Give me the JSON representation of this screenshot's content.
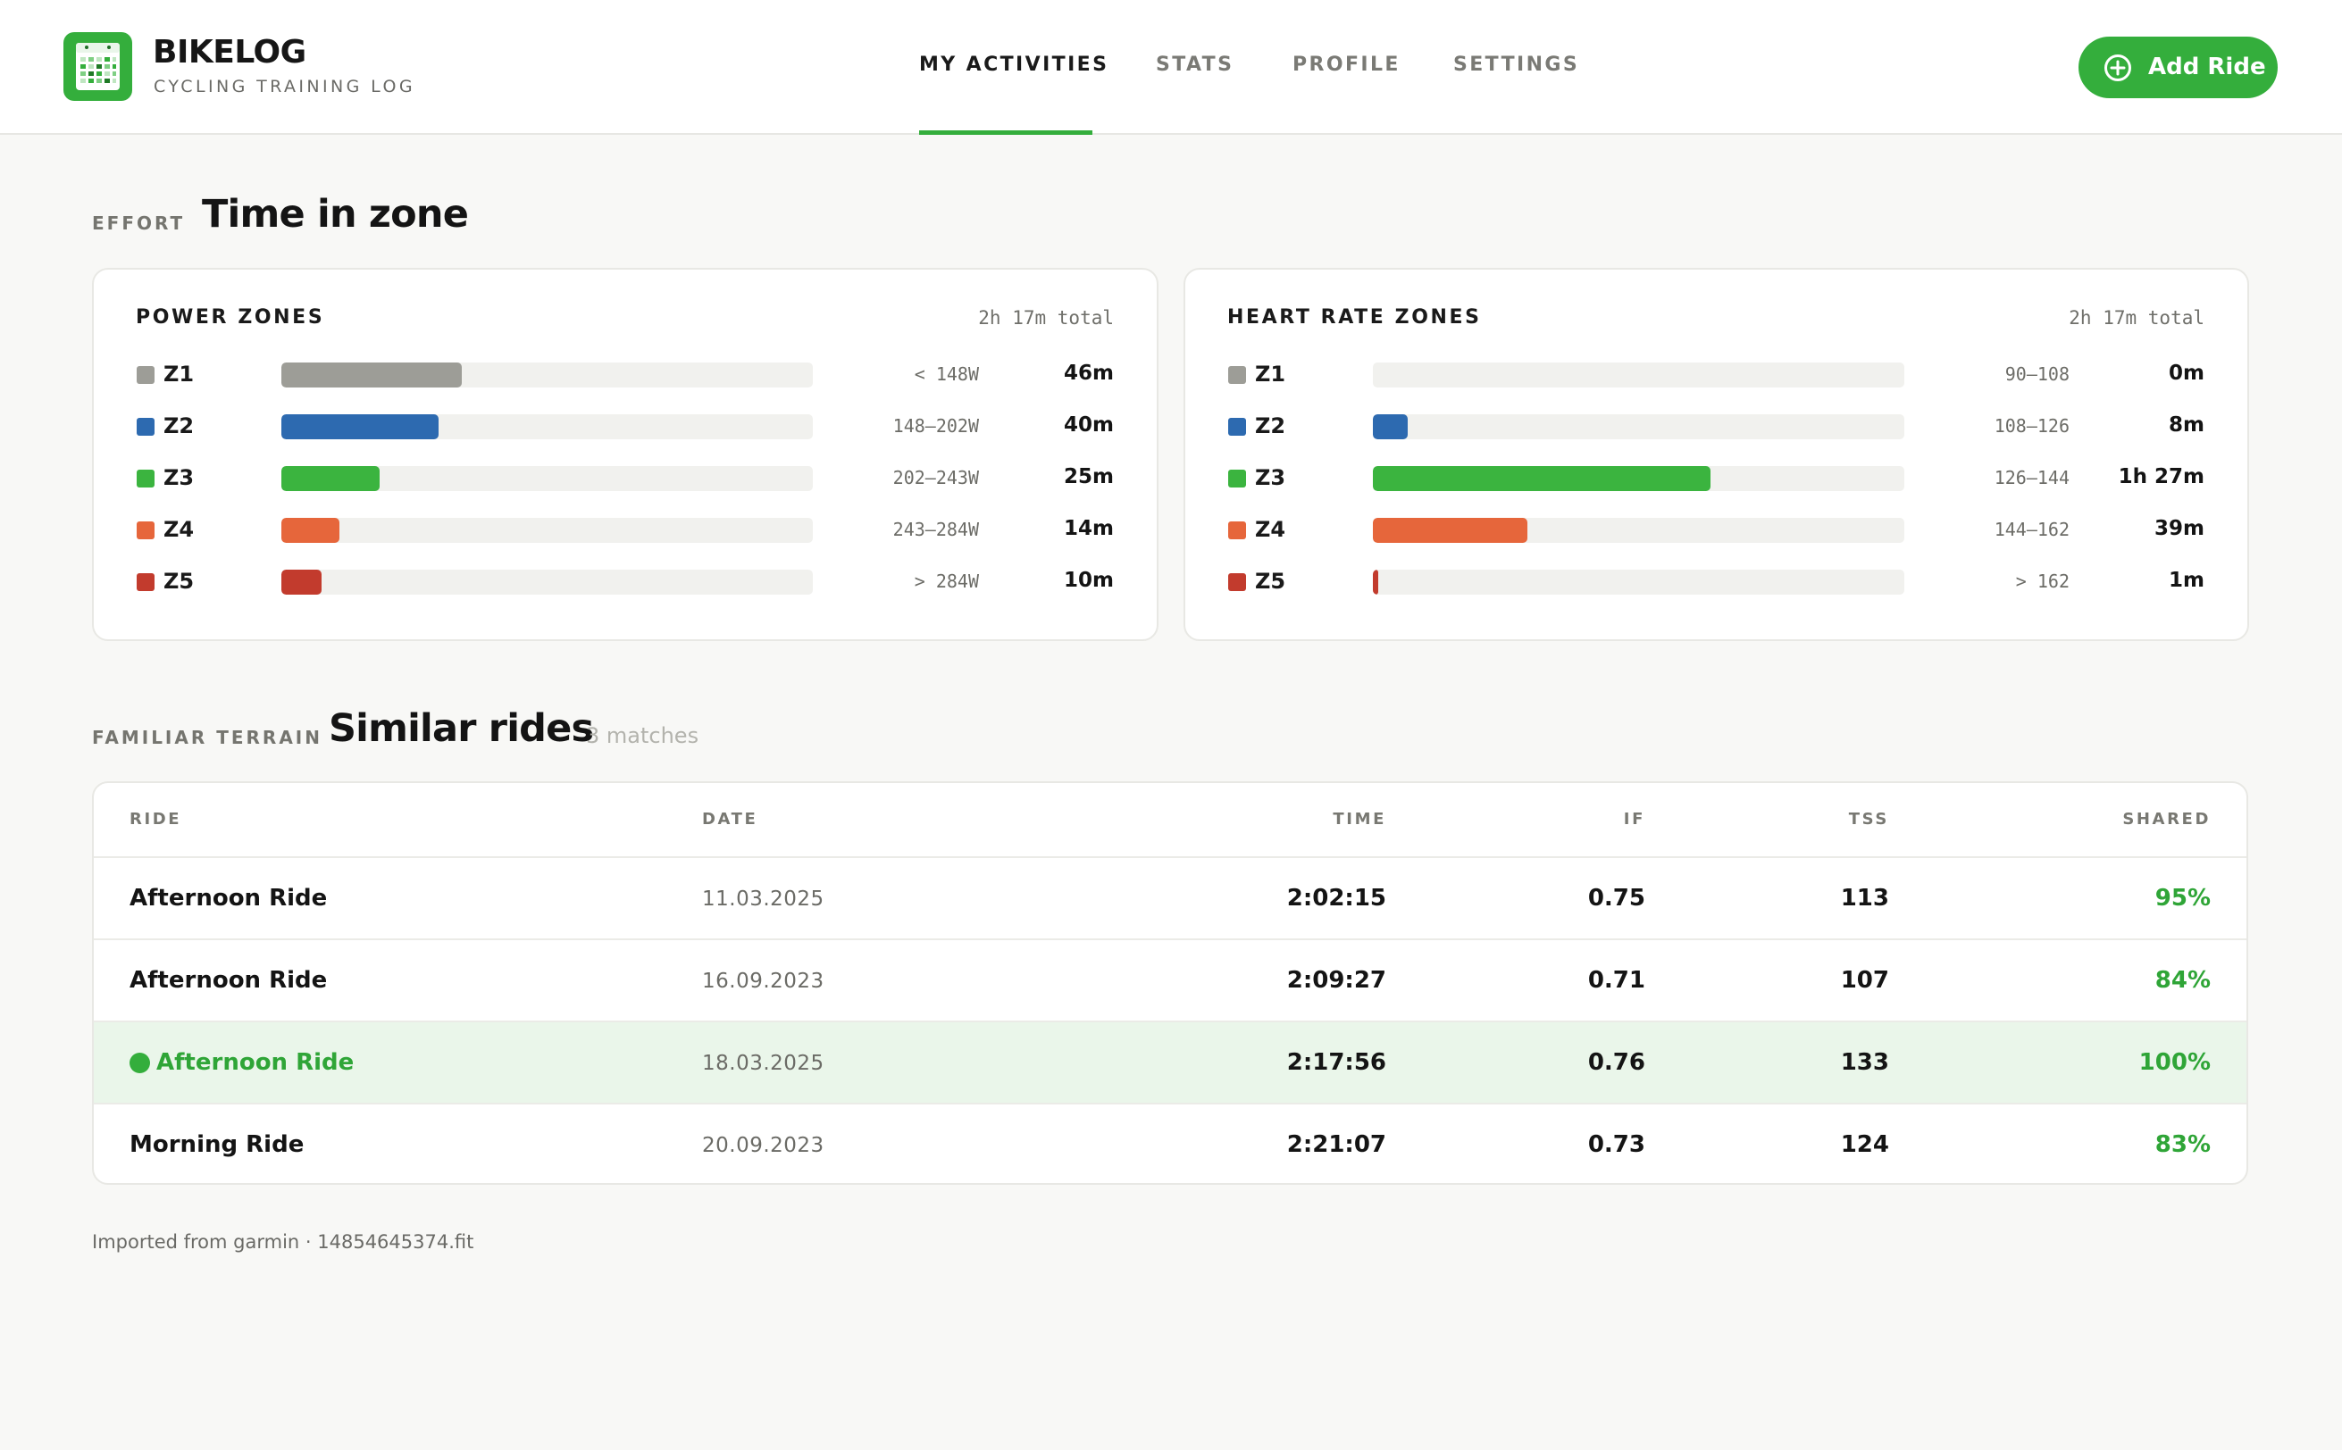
{
  "app": {
    "name": "BIKELOG",
    "subtitle": "CYCLING TRAINING LOG",
    "logo_icon": "calendar-grid-icon"
  },
  "nav": {
    "items": [
      {
        "label": "MY ACTIVITIES",
        "active": true
      },
      {
        "label": "STATS",
        "active": false
      },
      {
        "label": "PROFILE",
        "active": false
      },
      {
        "label": "SETTINGS",
        "active": false
      }
    ]
  },
  "actions": {
    "add_ride_label": "Add Ride",
    "add_ride_icon": "plus-circle-icon",
    "accent_color": "#34ae3c"
  },
  "effort_section": {
    "kicker": "EFFORT",
    "title": "Time in zone"
  },
  "power_zones": {
    "title": "POWER ZONES",
    "total": "2h 17m total",
    "zones": [
      {
        "name": "Z1",
        "range": "< 148W",
        "time": "46m",
        "fraction": 0.34,
        "color": "#9d9d97"
      },
      {
        "name": "Z2",
        "range": "148–202W",
        "time": "40m",
        "fraction": 0.295,
        "color": "#2d6ab0"
      },
      {
        "name": "Z3",
        "range": "202–243W",
        "time": "25m",
        "fraction": 0.185,
        "color": "#3bb43f"
      },
      {
        "name": "Z4",
        "range": "243–284W",
        "time": "14m",
        "fraction": 0.11,
        "color": "#e6663b"
      },
      {
        "name": "Z5",
        "range": "> 284W",
        "time": "10m",
        "fraction": 0.075,
        "color": "#c23b2d"
      }
    ]
  },
  "hr_zones": {
    "title": "HEART RATE ZONES",
    "total": "2h 17m total",
    "zones": [
      {
        "name": "Z1",
        "range": "90–108",
        "time": "0m",
        "fraction": 0,
        "color": "#9d9d97"
      },
      {
        "name": "Z2",
        "range": "108–126",
        "time": "8m",
        "fraction": 0.065,
        "color": "#2d6ab0"
      },
      {
        "name": "Z3",
        "range": "126–144",
        "time": "1h 27m",
        "fraction": 0.635,
        "color": "#3bb43f"
      },
      {
        "name": "Z4",
        "range": "144–162",
        "time": "39m",
        "fraction": 0.29,
        "color": "#e6663b"
      },
      {
        "name": "Z5",
        "range": "> 162",
        "time": "1m",
        "fraction": 0.01,
        "color": "#c23b2d"
      }
    ]
  },
  "similar_section": {
    "kicker": "FAMILIAR TERRAIN",
    "title": "Similar rides",
    "count": "3 matches"
  },
  "table": {
    "headers": {
      "ride": "RIDE",
      "date": "DATE",
      "time": "TIME",
      "if": "IF",
      "tss": "TSS",
      "shared": "SHARED"
    },
    "rows": [
      {
        "ride": "Afternoon Ride",
        "date": "11.03.2025",
        "time": "2:02:15",
        "if": "0.75",
        "tss": "113",
        "shared": "95%",
        "current": false
      },
      {
        "ride": "Afternoon Ride",
        "date": "16.09.2023",
        "time": "2:09:27",
        "if": "0.71",
        "tss": "107",
        "shared": "84%",
        "current": false
      },
      {
        "ride": "Afternoon Ride",
        "date": "18.03.2025",
        "time": "2:17:56",
        "if": "0.76",
        "tss": "133",
        "shared": "100%",
        "current": true
      },
      {
        "ride": "Morning Ride",
        "date": "20.09.2023",
        "time": "2:21:07",
        "if": "0.73",
        "tss": "124",
        "shared": "83%",
        "current": false
      }
    ]
  },
  "footer": {
    "import_note": "Imported from garmin · 14854645374.fit"
  }
}
